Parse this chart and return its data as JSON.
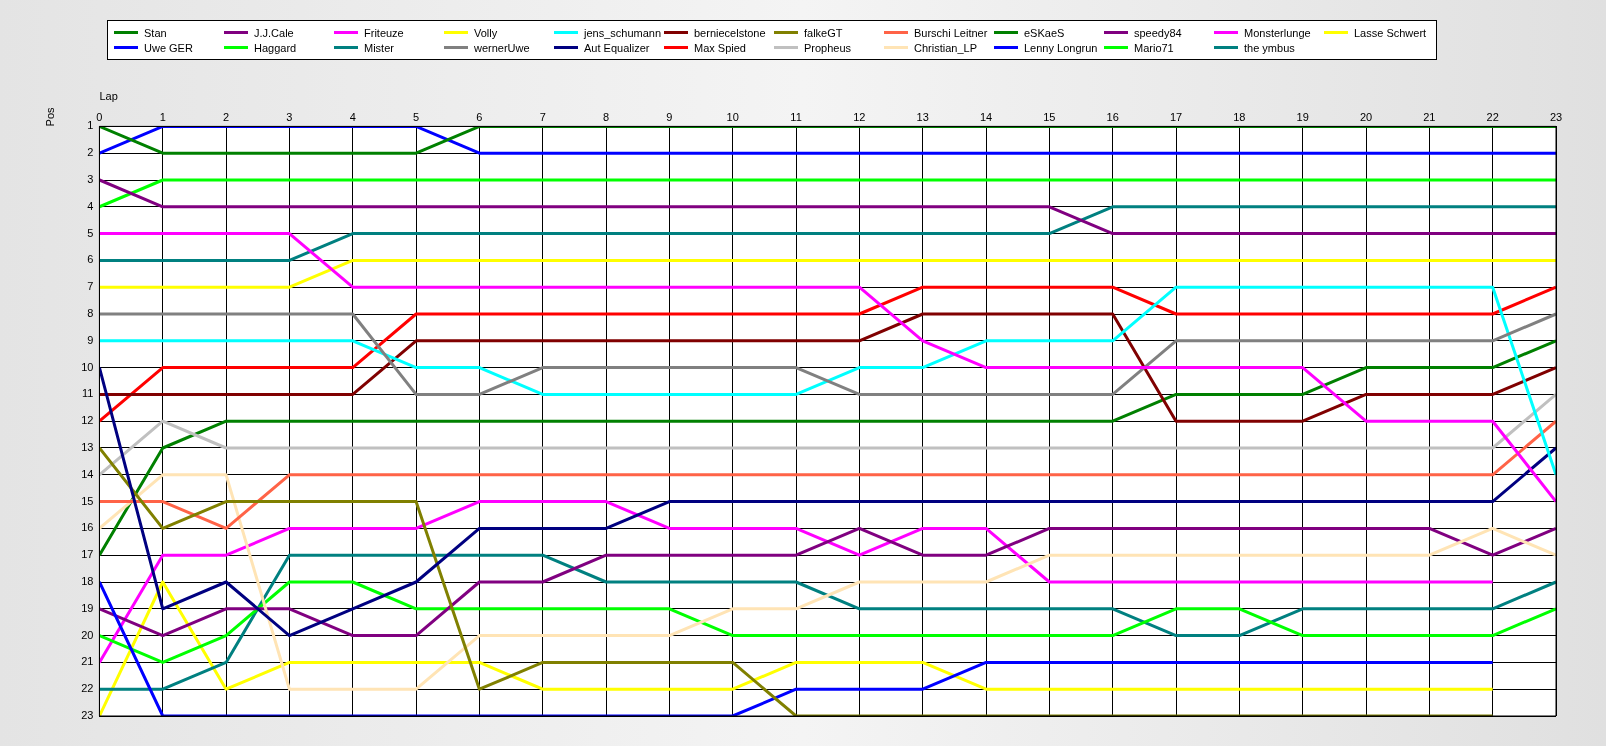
{
  "chart_data": {
    "type": "line",
    "xlabel": "Lap",
    "ylabel": "Pos",
    "legend": "top",
    "grid": true,
    "marker": "none",
    "line_style": "solid",
    "x": [
      0,
      1,
      2,
      3,
      4,
      5,
      6,
      7,
      8,
      9,
      10,
      11,
      12,
      13,
      14,
      15,
      16,
      17,
      18,
      19,
      20,
      21,
      22,
      23
    ],
    "xlim": [
      0,
      23
    ],
    "xticks": [
      0,
      1,
      2,
      3,
      4,
      5,
      6,
      7,
      8,
      9,
      10,
      11,
      12,
      13,
      14,
      15,
      16,
      17,
      18,
      19,
      20,
      21,
      22,
      23
    ],
    "ylim": [
      23,
      1
    ],
    "yticks": [
      1,
      2,
      3,
      4,
      5,
      6,
      7,
      8,
      9,
      10,
      11,
      12,
      13,
      14,
      15,
      16,
      17,
      18,
      19,
      20,
      21,
      22,
      23
    ],
    "series": [
      {
        "name": "Stan",
        "color": "#008000",
        "values": [
          1,
          2,
          2,
          2,
          2,
          2,
          1,
          1,
          1,
          1,
          1,
          1,
          1,
          1,
          1,
          1,
          1,
          1,
          1,
          1,
          1,
          1,
          1,
          1
        ]
      },
      {
        "name": "Uwe GER",
        "color": "#0000ff",
        "values": [
          2,
          1,
          1,
          1,
          1,
          1,
          2,
          2,
          2,
          2,
          2,
          2,
          2,
          2,
          2,
          2,
          2,
          2,
          2,
          2,
          2,
          2,
          2,
          2
        ]
      },
      {
        "name": "J.J.Cale",
        "color": "#800080",
        "values": [
          3,
          4,
          4,
          4,
          4,
          4,
          4,
          4,
          4,
          4,
          4,
          4,
          4,
          4,
          4,
          4,
          5,
          5,
          5,
          5,
          5,
          5,
          5,
          5
        ]
      },
      {
        "name": "Haggard",
        "color": "#00ff00",
        "values": [
          4,
          3,
          3,
          3,
          3,
          3,
          3,
          3,
          3,
          3,
          3,
          3,
          3,
          3,
          3,
          3,
          3,
          3,
          3,
          3,
          3,
          3,
          3,
          3
        ]
      },
      {
        "name": "Friteuze",
        "color": "#ff00ff",
        "values": [
          5,
          5,
          5,
          5,
          7,
          7,
          7,
          7,
          7,
          7,
          7,
          7,
          7,
          9,
          10,
          10,
          10,
          10,
          10,
          10,
          12,
          12,
          12,
          15
        ]
      },
      {
        "name": "Mister",
        "color": "#008080",
        "values": [
          6,
          6,
          6,
          6,
          5,
          5,
          5,
          5,
          5,
          5,
          5,
          5,
          5,
          5,
          5,
          5,
          4,
          4,
          4,
          4,
          4,
          4,
          4,
          4
        ]
      },
      {
        "name": "Volly",
        "color": "#ffff00",
        "values": [
          7,
          7,
          7,
          7,
          6,
          6,
          6,
          6,
          6,
          6,
          6,
          6,
          6,
          6,
          6,
          6,
          6,
          6,
          6,
          6,
          6,
          6,
          6,
          6
        ]
      },
      {
        "name": "wernerUwe",
        "color": "#808080",
        "values": [
          8,
          8,
          8,
          8,
          8,
          11,
          11,
          10,
          10,
          10,
          10,
          10,
          11,
          11,
          11,
          11,
          11,
          9,
          9,
          9,
          9,
          9,
          9,
          8
        ]
      },
      {
        "name": "jens_schumann",
        "color": "#00ffff",
        "values": [
          9,
          9,
          9,
          9,
          9,
          10,
          10,
          11,
          11,
          11,
          11,
          11,
          10,
          10,
          9,
          9,
          9,
          7,
          7,
          7,
          7,
          7,
          7,
          14
        ]
      },
      {
        "name": "Aut Equalizer",
        "color": "#000080",
        "values": [
          10,
          19,
          18,
          20,
          19,
          18,
          16,
          16,
          16,
          15,
          15,
          15,
          15,
          15,
          15,
          15,
          15,
          15,
          15,
          15,
          15,
          15,
          15,
          13
        ]
      },
      {
        "name": "berniecelstone",
        "color": "#800000",
        "values": [
          11,
          11,
          11,
          11,
          11,
          9,
          9,
          9,
          9,
          9,
          9,
          9,
          9,
          8,
          8,
          8,
          8,
          12,
          12,
          12,
          11,
          11,
          11,
          10
        ]
      },
      {
        "name": "Max Spied",
        "color": "#ff0000",
        "values": [
          12,
          10,
          10,
          10,
          10,
          8,
          8,
          8,
          8,
          8,
          8,
          8,
          8,
          7,
          7,
          7,
          7,
          8,
          8,
          8,
          8,
          8,
          8,
          7
        ]
      },
      {
        "name": "falkeGT",
        "color": "#808000",
        "values": [
          13,
          16,
          15,
          15,
          15,
          15,
          22,
          21,
          21,
          21,
          21,
          23,
          23,
          23,
          23,
          23,
          23,
          23,
          23,
          23,
          23,
          23,
          23,
          null
        ]
      },
      {
        "name": "Propheus",
        "color": "#c0c0c0",
        "values": [
          14,
          12,
          13,
          13,
          13,
          13,
          13,
          13,
          13,
          13,
          13,
          13,
          13,
          13,
          13,
          13,
          13,
          13,
          13,
          13,
          13,
          13,
          13,
          11
        ]
      },
      {
        "name": "Burschi Leitner",
        "color": "#ff6347",
        "values": [
          15,
          15,
          16,
          14,
          14,
          14,
          14,
          14,
          14,
          14,
          14,
          14,
          14,
          14,
          14,
          14,
          14,
          14,
          14,
          14,
          14,
          14,
          14,
          12
        ]
      },
      {
        "name": "Christian_LP",
        "color": "#ffe4b5",
        "values": [
          16,
          14,
          14,
          22,
          22,
          22,
          20,
          20,
          20,
          20,
          19,
          19,
          18,
          18,
          18,
          17,
          17,
          17,
          17,
          17,
          17,
          17,
          16,
          17
        ]
      },
      {
        "name": "eSKaeS",
        "color": "#008000",
        "values": [
          17,
          13,
          12,
          12,
          12,
          12,
          12,
          12,
          12,
          12,
          12,
          12,
          12,
          12,
          12,
          12,
          12,
          11,
          11,
          11,
          10,
          10,
          10,
          9
        ]
      },
      {
        "name": "Lenny Longrun",
        "color": "#0000ff",
        "values": [
          18,
          23,
          23,
          23,
          23,
          23,
          23,
          23,
          23,
          23,
          23,
          22,
          22,
          22,
          21,
          21,
          21,
          21,
          21,
          21,
          21,
          21,
          21,
          null
        ]
      },
      {
        "name": "speedy84",
        "color": "#800080",
        "values": [
          19,
          20,
          19,
          19,
          20,
          20,
          18,
          18,
          17,
          17,
          17,
          17,
          16,
          17,
          17,
          16,
          16,
          16,
          16,
          16,
          16,
          16,
          17,
          16
        ]
      },
      {
        "name": "Mario71",
        "color": "#00ff00",
        "values": [
          20,
          21,
          20,
          18,
          18,
          19,
          19,
          19,
          19,
          19,
          20,
          20,
          20,
          20,
          20,
          20,
          20,
          19,
          19,
          20,
          20,
          20,
          20,
          19
        ]
      },
      {
        "name": "Monsterlunge",
        "color": "#ff00ff",
        "values": [
          21,
          17,
          17,
          16,
          16,
          16,
          15,
          15,
          15,
          16,
          16,
          16,
          17,
          16,
          16,
          18,
          18,
          18,
          18,
          18,
          18,
          18,
          18,
          null
        ]
      },
      {
        "name": "the ymbus",
        "color": "#008080",
        "values": [
          22,
          22,
          21,
          17,
          17,
          17,
          17,
          17,
          18,
          18,
          18,
          18,
          19,
          19,
          19,
          19,
          19,
          20,
          20,
          19,
          19,
          19,
          19,
          18
        ]
      },
      {
        "name": "Lasse Schwert",
        "color": "#ffff00",
        "values": [
          23,
          18,
          22,
          21,
          21,
          21,
          21,
          22,
          22,
          22,
          22,
          21,
          21,
          21,
          22,
          22,
          22,
          22,
          22,
          22,
          22,
          22,
          22,
          null
        ]
      }
    ]
  }
}
